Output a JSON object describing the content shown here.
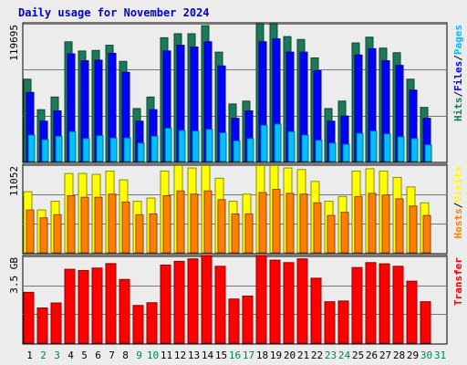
{
  "title": "Daily usage for November 2024",
  "colors": {
    "background": "#ececec",
    "hits": "#1a7a5a",
    "files": "#0000ff",
    "pages": "#00c0ff",
    "hosts": "#ff8000",
    "visits": "#ffff00",
    "transfer": "#ff0000",
    "title": "#0000c8"
  },
  "chart_data": {
    "type": "bar",
    "categories": [
      "1",
      "2",
      "3",
      "4",
      "5",
      "6",
      "7",
      "8",
      "9",
      "10",
      "11",
      "12",
      "13",
      "14",
      "15",
      "16",
      "17",
      "18",
      "19",
      "20",
      "21",
      "22",
      "23",
      "24",
      "25",
      "26",
      "27",
      "28",
      "29",
      "30",
      "31"
    ],
    "weekend_days": [
      "2",
      "3",
      "9",
      "10",
      "16",
      "17",
      "23",
      "24",
      "30",
      "31"
    ],
    "panels": [
      {
        "name": "hits-files-pages",
        "max_label": "119695",
        "y_max": 119695,
        "right_label_parts": [
          {
            "text": "Hits",
            "color": "#1a7a5a"
          },
          {
            "text": "/",
            "color": "#000000"
          },
          {
            "text": "Files",
            "color": "#0000ff"
          },
          {
            "text": "/",
            "color": "#000000"
          },
          {
            "text": "Pages",
            "color": "#00c0ff"
          }
        ],
        "series": [
          {
            "name": "Hits",
            "values": [
              71500,
              45000,
              56000,
              104000,
              96000,
              96500,
              101000,
              87000,
              46000,
              56000,
              107500,
              111000,
              111000,
              118000,
              95000,
              50000,
              52500,
              119500,
              119500,
              108500,
              106000,
              90000,
              46000,
              52500,
              103000,
              108000,
              98500,
              94500,
              71500,
              47000,
              0
            ]
          },
          {
            "name": "Files",
            "values": [
              60000,
              35000,
              44000,
              93500,
              87500,
              88000,
              94000,
              77500,
              35000,
              45000,
              96000,
              101000,
              99500,
              104000,
              83000,
              37500,
              44000,
              104000,
              106500,
              95000,
              95000,
              79000,
              35000,
              39500,
              92500,
              98000,
              87500,
              83500,
              62000,
              37500,
              0
            ]
          },
          {
            "name": "Pages",
            "values": [
              23000,
              19000,
              22000,
              26000,
              20000,
              22500,
              20500,
              20500,
              16000,
              22000,
              29000,
              27000,
              26500,
              28000,
              25000,
              18000,
              20000,
              31500,
              32500,
              26000,
              23000,
              18500,
              16000,
              15000,
              24500,
              26500,
              24000,
              21500,
              20000,
              14500,
              0
            ]
          }
        ]
      },
      {
        "name": "hosts-visits",
        "max_label": "11052",
        "y_max": 11052,
        "right_label_parts": [
          {
            "text": "Hosts",
            "color": "#ff8000"
          },
          {
            "text": "/",
            "color": "#000000"
          },
          {
            "text": "Visits",
            "color": "#ffff00"
          }
        ],
        "series": [
          {
            "name": "Visits",
            "values": [
              7700,
              5400,
              6500,
              10000,
              10000,
              9900,
              10300,
              9200,
              6500,
              6900,
              10300,
              11000,
              10700,
              11000,
              9400,
              6500,
              7400,
              11000,
              11000,
              10700,
              10500,
              9000,
              6500,
              7100,
              10300,
              10600,
              10300,
              9500,
              8300,
              6300,
              0
            ]
          },
          {
            "name": "Hosts",
            "values": [
              5400,
              4400,
              4800,
              7200,
              7000,
              7000,
              7400,
              6400,
              4800,
              4900,
              7200,
              7800,
              7400,
              7800,
              6700,
              4900,
              4900,
              7600,
              8000,
              7500,
              7400,
              6300,
              4700,
              5100,
              7100,
              7500,
              7300,
              6800,
              5900,
              4700,
              0
            ]
          }
        ]
      },
      {
        "name": "transfer",
        "max_label": "3.5 GB",
        "y_max": 3.5,
        "right_label_parts": [
          {
            "text": "Transfer",
            "color": "#ff0000"
          }
        ],
        "series": [
          {
            "name": "Transfer",
            "values": [
              2.05,
              1.42,
              1.62,
              2.98,
              2.93,
              3.03,
              3.21,
              2.57,
              1.52,
              1.63,
              3.15,
              3.3,
              3.4,
              3.53,
              3.1,
              1.78,
              1.9,
              3.53,
              3.35,
              3.25,
              3.4,
              2.62,
              1.67,
              1.7,
              3.05,
              3.25,
              3.2,
              3.1,
              2.5,
              1.67,
              0
            ]
          }
        ]
      }
    ]
  }
}
